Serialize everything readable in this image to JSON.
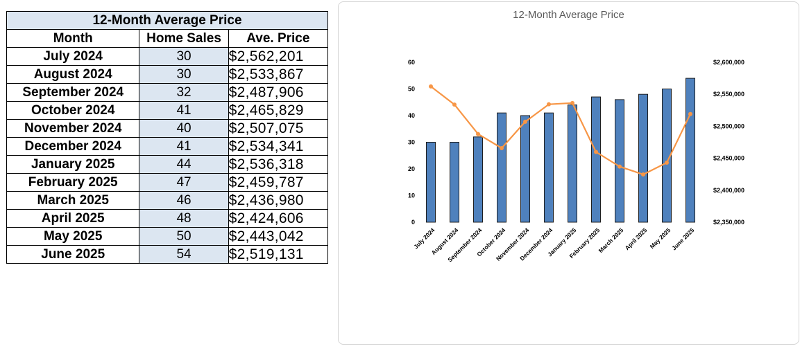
{
  "table": {
    "title": "12-Month Average Price",
    "headers": [
      "Month",
      "Home Sales",
      "Ave. Price"
    ],
    "rows": [
      {
        "month": "July 2024",
        "sales": "30",
        "price": "$2,562,201"
      },
      {
        "month": "August 2024",
        "sales": "30",
        "price": "$2,533,867"
      },
      {
        "month": "September 2024",
        "sales": "32",
        "price": "$2,487,906"
      },
      {
        "month": "October 2024",
        "sales": "41",
        "price": "$2,465,829"
      },
      {
        "month": "November 2024",
        "sales": "40",
        "price": "$2,507,075"
      },
      {
        "month": "December 2024",
        "sales": "41",
        "price": "$2,534,341"
      },
      {
        "month": "January 2025",
        "sales": "44",
        "price": "$2,536,318"
      },
      {
        "month": "February 2025",
        "sales": "47",
        "price": "$2,459,787"
      },
      {
        "month": "March 2025",
        "sales": "46",
        "price": "$2,436,980"
      },
      {
        "month": "April 2025",
        "sales": "48",
        "price": "$2,424,606"
      },
      {
        "month": "May 2025",
        "sales": "50",
        "price": "$2,443,042"
      },
      {
        "month": "June 2025",
        "sales": "54",
        "price": "$2,519,131"
      }
    ]
  },
  "chart_data": {
    "type": "bar",
    "title": "12-Month Average Price",
    "categories": [
      "July 2024",
      "August 2024",
      "September 2024",
      "October 2024",
      "November 2024",
      "December 2024",
      "January 2025",
      "February 2025",
      "March 2025",
      "April 2025",
      "May 2025",
      "June 2025"
    ],
    "series": [
      {
        "type": "bar",
        "axis": "left",
        "color": "#4f81bd",
        "values": [
          30,
          30,
          32,
          41,
          40,
          41,
          44,
          47,
          46,
          48,
          50,
          54
        ]
      },
      {
        "type": "line",
        "axis": "right",
        "color": "#f79646",
        "values": [
          2562201,
          2533867,
          2487906,
          2465829,
          2507075,
          2534341,
          2536318,
          2459787,
          2436980,
          2424606,
          2443042,
          2519131
        ]
      }
    ],
    "y_left": {
      "min": 0,
      "max": 60,
      "step": 10,
      "tick_labels": [
        "0",
        "10",
        "20",
        "30",
        "40",
        "50",
        "60"
      ]
    },
    "y_right": {
      "min": 2350000,
      "max": 2600000,
      "step": 50000,
      "tick_labels": [
        "$2,350,000",
        "$2,400,000",
        "$2,450,000",
        "$2,500,000",
        "$2,550,000",
        "$2,600,000"
      ]
    },
    "grid": false,
    "legend": "none"
  }
}
